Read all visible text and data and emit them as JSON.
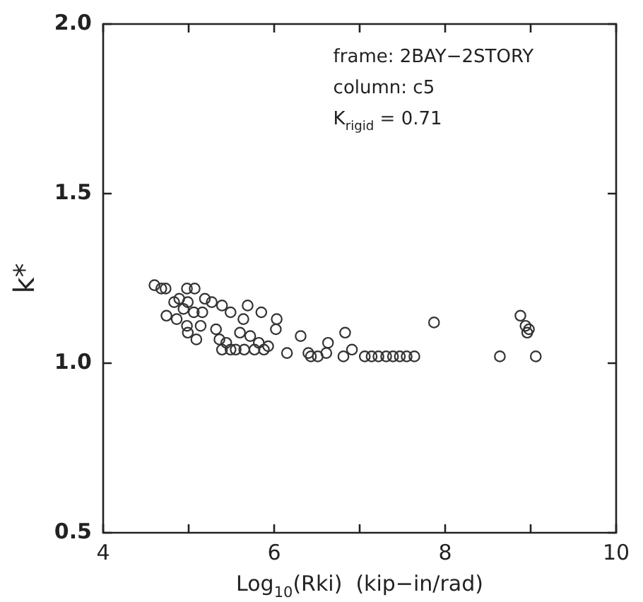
{
  "chart_data": {
    "type": "scatter",
    "xlabel": "Log$_{10}$(Rki)  (kip−in/rad)",
    "ylabel": "k*",
    "annotations": [
      "frame: 2BAY−2STORY",
      "column: c5",
      "K$_{rigid}$ = 0.71"
    ],
    "xlim": [
      4,
      10
    ],
    "ylim": [
      0.5,
      2.0
    ],
    "xticks": [
      4,
      {
        "value": 5,
        "label": null
      },
      6,
      {
        "value": 7,
        "label": null
      },
      8,
      {
        "value": 9,
        "label": null
      },
      10
    ],
    "yticks": [
      {
        "value": 0.5,
        "label": "0.5"
      },
      {
        "value": 1.0,
        "label": "1.0"
      },
      {
        "value": 1.5,
        "label": "1.5"
      },
      {
        "value": 2.0,
        "label": "2.0"
      }
    ],
    "grid": false,
    "legend": false,
    "marker": "circle",
    "series": [
      {
        "color": "#333333",
        "x": [
          4.6,
          4.68,
          4.73,
          4.98,
          5.07,
          4.83,
          4.89,
          4.99,
          5.19,
          5.27,
          5.39,
          5.49,
          5.69,
          5.85,
          6.03,
          4.74,
          4.86,
          4.98,
          5.14,
          4.99,
          5.09,
          5.32,
          5.36,
          5.44,
          5.6,
          5.72,
          5.82,
          5.93,
          6.02,
          6.15,
          6.31,
          6.4,
          5.55,
          5.65,
          5.77,
          5.88,
          5.49,
          5.39,
          5.64,
          5.16,
          4.94,
          5.06,
          6.43,
          6.51,
          6.61,
          6.63,
          6.81,
          6.83,
          6.91,
          7.06,
          7.14,
          7.22,
          7.31,
          7.39,
          7.47,
          7.55,
          7.64,
          7.87,
          8.88,
          8.94,
          8.98,
          8.96,
          8.64,
          9.06
        ],
        "values": [
          1.23,
          1.22,
          1.22,
          1.22,
          1.22,
          1.18,
          1.19,
          1.18,
          1.19,
          1.18,
          1.17,
          1.15,
          1.17,
          1.15,
          1.13,
          1.14,
          1.13,
          1.11,
          1.11,
          1.09,
          1.07,
          1.1,
          1.07,
          1.06,
          1.09,
          1.08,
          1.06,
          1.05,
          1.1,
          1.03,
          1.08,
          1.03,
          1.04,
          1.04,
          1.04,
          1.04,
          1.04,
          1.04,
          1.13,
          1.15,
          1.16,
          1.15,
          1.02,
          1.02,
          1.03,
          1.06,
          1.02,
          1.09,
          1.04,
          1.02,
          1.02,
          1.02,
          1.02,
          1.02,
          1.02,
          1.02,
          1.02,
          1.12,
          1.14,
          1.11,
          1.1,
          1.09,
          1.02,
          1.02
        ]
      }
    ]
  }
}
